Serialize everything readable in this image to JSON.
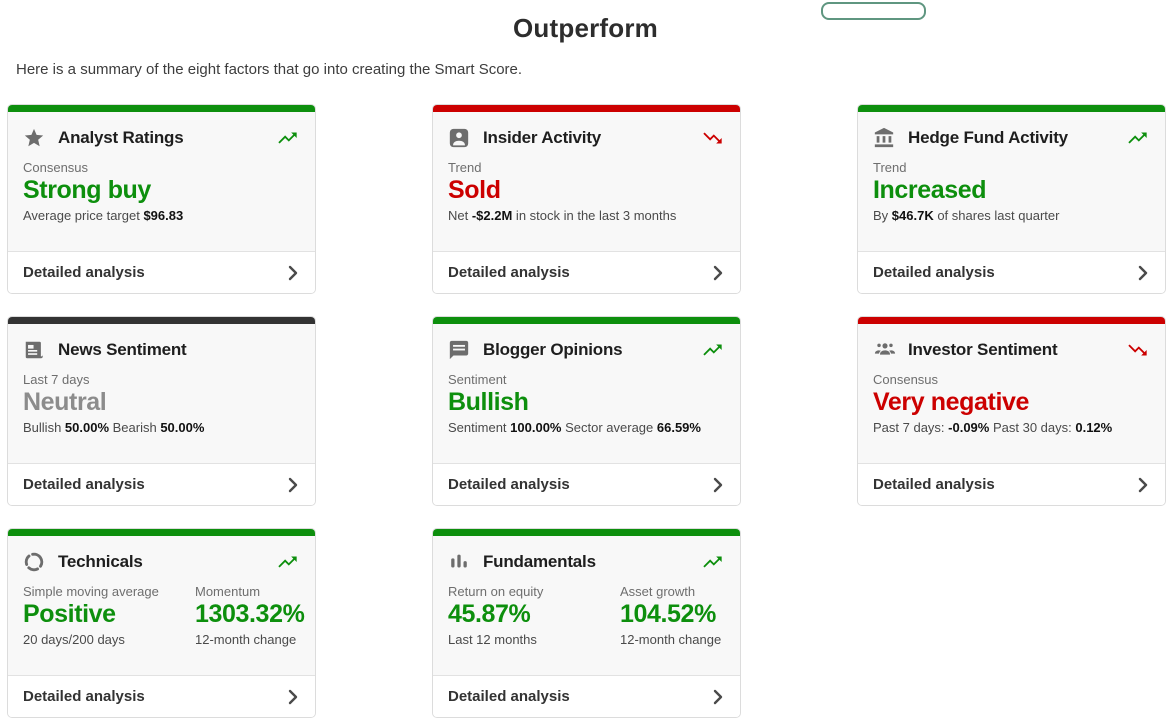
{
  "page": {
    "title": "Outperform",
    "subtitle": "Here is a summary of the eight factors that go into creating the Smart Score."
  },
  "colors": {
    "green": "#0d8f0d",
    "red": "#cc0000",
    "dark": "#333333",
    "neutral": "#8c8c8c",
    "button_border": "#5f9680"
  },
  "cards": [
    {
      "id": "analyst-ratings",
      "title": "Analyst Ratings",
      "icon": "star-icon",
      "bar": "green",
      "trend": "up",
      "footer": "Detailed analysis",
      "stats": [
        {
          "label": "Consensus",
          "value": "Strong buy",
          "value_color": "green",
          "sub": [
            {
              "t": "Average price target ",
              "b": false
            },
            {
              "t": "$96.83",
              "b": true
            }
          ]
        }
      ]
    },
    {
      "id": "insider-activity",
      "title": "Insider Activity",
      "icon": "person-badge-icon",
      "bar": "red",
      "trend": "down",
      "footer": "Detailed analysis",
      "stats": [
        {
          "label": "Trend",
          "value": "Sold",
          "value_color": "red",
          "sub": [
            {
              "t": "Net ",
              "b": false
            },
            {
              "t": "-$2.2M",
              "b": true
            },
            {
              "t": " in stock in the last 3 months",
              "b": false
            }
          ]
        }
      ]
    },
    {
      "id": "hedge-fund-activity",
      "title": "Hedge Fund Activity",
      "icon": "bank-icon",
      "bar": "green",
      "trend": "up",
      "footer": "Detailed analysis",
      "stats": [
        {
          "label": "Trend",
          "value": "Increased",
          "value_color": "green",
          "sub": [
            {
              "t": "By ",
              "b": false
            },
            {
              "t": "$46.7K",
              "b": true
            },
            {
              "t": " of shares last quarter",
              "b": false
            }
          ]
        }
      ]
    },
    {
      "id": "news-sentiment",
      "title": "News Sentiment",
      "icon": "newspaper-icon",
      "bar": "dark",
      "trend": "none",
      "footer": "Detailed analysis",
      "stats": [
        {
          "label": "Last 7 days",
          "value": "Neutral",
          "value_color": "neutral",
          "sub": [
            {
              "t": "Bullish ",
              "b": false
            },
            {
              "t": "50.00%",
              "b": true
            },
            {
              "t": " Bearish ",
              "b": false
            },
            {
              "t": "50.00%",
              "b": true
            }
          ]
        }
      ]
    },
    {
      "id": "blogger-opinions",
      "title": "Blogger Opinions",
      "icon": "speech-bubble-icon",
      "bar": "green",
      "trend": "up",
      "footer": "Detailed analysis",
      "stats": [
        {
          "label": "Sentiment",
          "value": "Bullish",
          "value_color": "green",
          "sub": [
            {
              "t": "Sentiment ",
              "b": false
            },
            {
              "t": "100.00%",
              "b": true
            },
            {
              "t": " Sector average ",
              "b": false
            },
            {
              "t": "66.59%",
              "b": true
            }
          ]
        }
      ]
    },
    {
      "id": "investor-sentiment",
      "title": "Investor Sentiment",
      "icon": "people-group-icon",
      "bar": "red",
      "trend": "down",
      "footer": "Detailed analysis",
      "stats": [
        {
          "label": "Consensus",
          "value": "Very negative",
          "value_color": "red",
          "sub": [
            {
              "t": "Past 7 days: ",
              "b": false
            },
            {
              "t": "-0.09%",
              "b": true
            },
            {
              "t": " Past 30 days: ",
              "b": false
            },
            {
              "t": "0.12%",
              "b": true
            }
          ]
        }
      ]
    },
    {
      "id": "technicals",
      "title": "Technicals",
      "icon": "gauge-circle-icon",
      "bar": "green",
      "trend": "up",
      "footer": "Detailed analysis",
      "stats": [
        {
          "label": "Simple moving average",
          "value": "Positive",
          "value_color": "green",
          "sub": [
            {
              "t": "20 days/200 days",
              "b": false
            }
          ]
        },
        {
          "label": "Momentum",
          "value": "1303.32%",
          "value_color": "green",
          "sub": [
            {
              "t": "12-month change",
              "b": false
            }
          ]
        }
      ]
    },
    {
      "id": "fundamentals",
      "title": "Fundamentals",
      "icon": "bar-chart-icon",
      "bar": "green",
      "trend": "up",
      "footer": "Detailed analysis",
      "stats": [
        {
          "label": "Return on equity",
          "value": "45.87%",
          "value_color": "green",
          "sub": [
            {
              "t": "Last 12 months",
              "b": false
            }
          ]
        },
        {
          "label": "Asset growth",
          "value": "104.52%",
          "value_color": "green",
          "sub": [
            {
              "t": "12-month change",
              "b": false
            }
          ]
        }
      ]
    }
  ]
}
